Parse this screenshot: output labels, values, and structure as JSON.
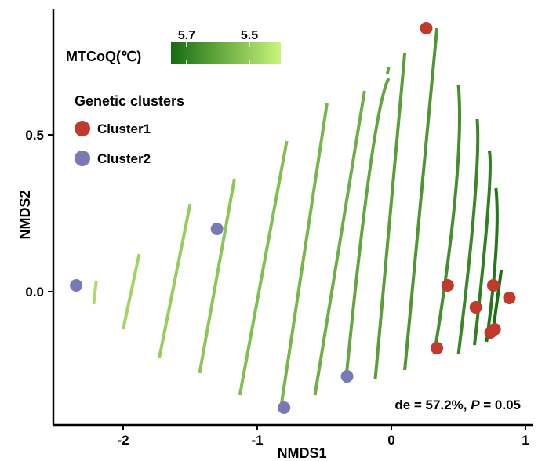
{
  "chart_data": {
    "type": "scatter",
    "xlabel": "NMDS1",
    "ylabel": "NMDS2",
    "xlim": [
      -2.5,
      1.1
    ],
    "ylim": [
      -0.43,
      0.91
    ],
    "xticks": [
      "-2",
      "-1",
      "0",
      "1"
    ],
    "xtick_values": [
      -2,
      -1,
      0,
      1
    ],
    "yticks": [
      "0.0",
      "0.5"
    ],
    "ytick_values": [
      0.0,
      0.5
    ],
    "legend": {
      "title": "Genetic clusters",
      "entries": [
        {
          "label": "Cluster1",
          "color": "#c0392b"
        },
        {
          "label": "Cluster2",
          "color": "#7b78b6"
        }
      ]
    },
    "colorbar": {
      "title": "MTCoQ(℃)",
      "tick_labels": [
        "5.7",
        "5.5"
      ],
      "tick_values": [
        5.7,
        5.5
      ],
      "range": [
        5.75,
        5.4
      ],
      "color_low_value": "#176b12",
      "color_high_value": "#c9f57a"
    },
    "series": [
      {
        "name": "Cluster1",
        "color": "#c0392b",
        "points": [
          {
            "x": 0.26,
            "y": 0.84
          },
          {
            "x": 0.42,
            "y": 0.02
          },
          {
            "x": 0.76,
            "y": 0.02
          },
          {
            "x": 0.88,
            "y": -0.02
          },
          {
            "x": 0.63,
            "y": -0.05
          },
          {
            "x": 0.77,
            "y": -0.12
          },
          {
            "x": 0.74,
            "y": -0.13
          },
          {
            "x": 0.34,
            "y": -0.18
          }
        ]
      },
      {
        "name": "Cluster2",
        "color": "#7b78b6",
        "points": [
          {
            "x": -1.3,
            "y": 0.2
          },
          {
            "x": -2.35,
            "y": 0.02
          },
          {
            "x": -0.33,
            "y": -0.27
          },
          {
            "x": -0.8,
            "y": -0.37
          }
        ]
      }
    ],
    "isolines": [
      {
        "level": 5.46,
        "points": [
          [
            -2.22,
            -0.04
          ],
          [
            -2.2,
            0.035
          ]
        ]
      },
      {
        "level": 5.48,
        "points": [
          [
            -2.0,
            -0.12
          ],
          [
            -1.88,
            0.12
          ]
        ]
      },
      {
        "level": 5.5,
        "points": [
          [
            -1.73,
            -0.21
          ],
          [
            -1.5,
            0.28
          ]
        ]
      },
      {
        "level": 5.52,
        "points": [
          [
            -1.43,
            -0.26
          ],
          [
            -1.17,
            0.36
          ]
        ]
      },
      {
        "level": 5.54,
        "points": [
          [
            -1.13,
            -0.33
          ],
          [
            -0.78,
            0.48
          ]
        ]
      },
      {
        "level": 5.56,
        "points": [
          [
            -0.82,
            -0.36
          ],
          [
            -0.48,
            0.6
          ]
        ]
      },
      {
        "level": 5.58,
        "points": [
          [
            -0.57,
            -0.33
          ],
          [
            -0.2,
            0.64
          ]
        ]
      },
      {
        "level": 5.6,
        "points": [
          [
            -0.34,
            -0.29
          ],
          [
            -0.16,
            0.39
          ],
          [
            -0.02,
            0.68
          ]
        ]
      },
      {
        "level": 5.6,
        "points": [
          [
            -0.03,
            0.695
          ],
          [
            -0.02,
            0.715
          ]
        ]
      },
      {
        "level": 5.62,
        "points": [
          [
            -0.12,
            -0.28
          ],
          [
            0.02,
            0.38
          ],
          [
            0.1,
            0.76
          ]
        ]
      },
      {
        "level": 5.64,
        "points": [
          [
            0.1,
            -0.25
          ],
          [
            0.24,
            0.38
          ],
          [
            0.34,
            0.84
          ]
        ]
      },
      {
        "level": 5.66,
        "points": [
          [
            0.32,
            -0.2
          ],
          [
            0.48,
            0.32
          ],
          [
            0.5,
            0.66
          ]
        ]
      },
      {
        "level": 5.68,
        "points": [
          [
            0.5,
            -0.2
          ],
          [
            0.62,
            0.28
          ],
          [
            0.64,
            0.55
          ]
        ]
      },
      {
        "level": 5.7,
        "points": [
          [
            0.62,
            -0.17
          ],
          [
            0.72,
            0.26
          ],
          [
            0.73,
            0.45
          ]
        ]
      },
      {
        "level": 5.72,
        "points": [
          [
            0.71,
            -0.16
          ],
          [
            0.78,
            0.13
          ],
          [
            0.78,
            0.33
          ]
        ]
      },
      {
        "level": 5.74,
        "points": [
          [
            0.76,
            -0.12
          ],
          [
            0.82,
            0.07
          ]
        ]
      }
    ],
    "annotation": {
      "stat": "de = 57.2%, ",
      "p_symbol": "P",
      "p_value": " = 0.05"
    }
  }
}
